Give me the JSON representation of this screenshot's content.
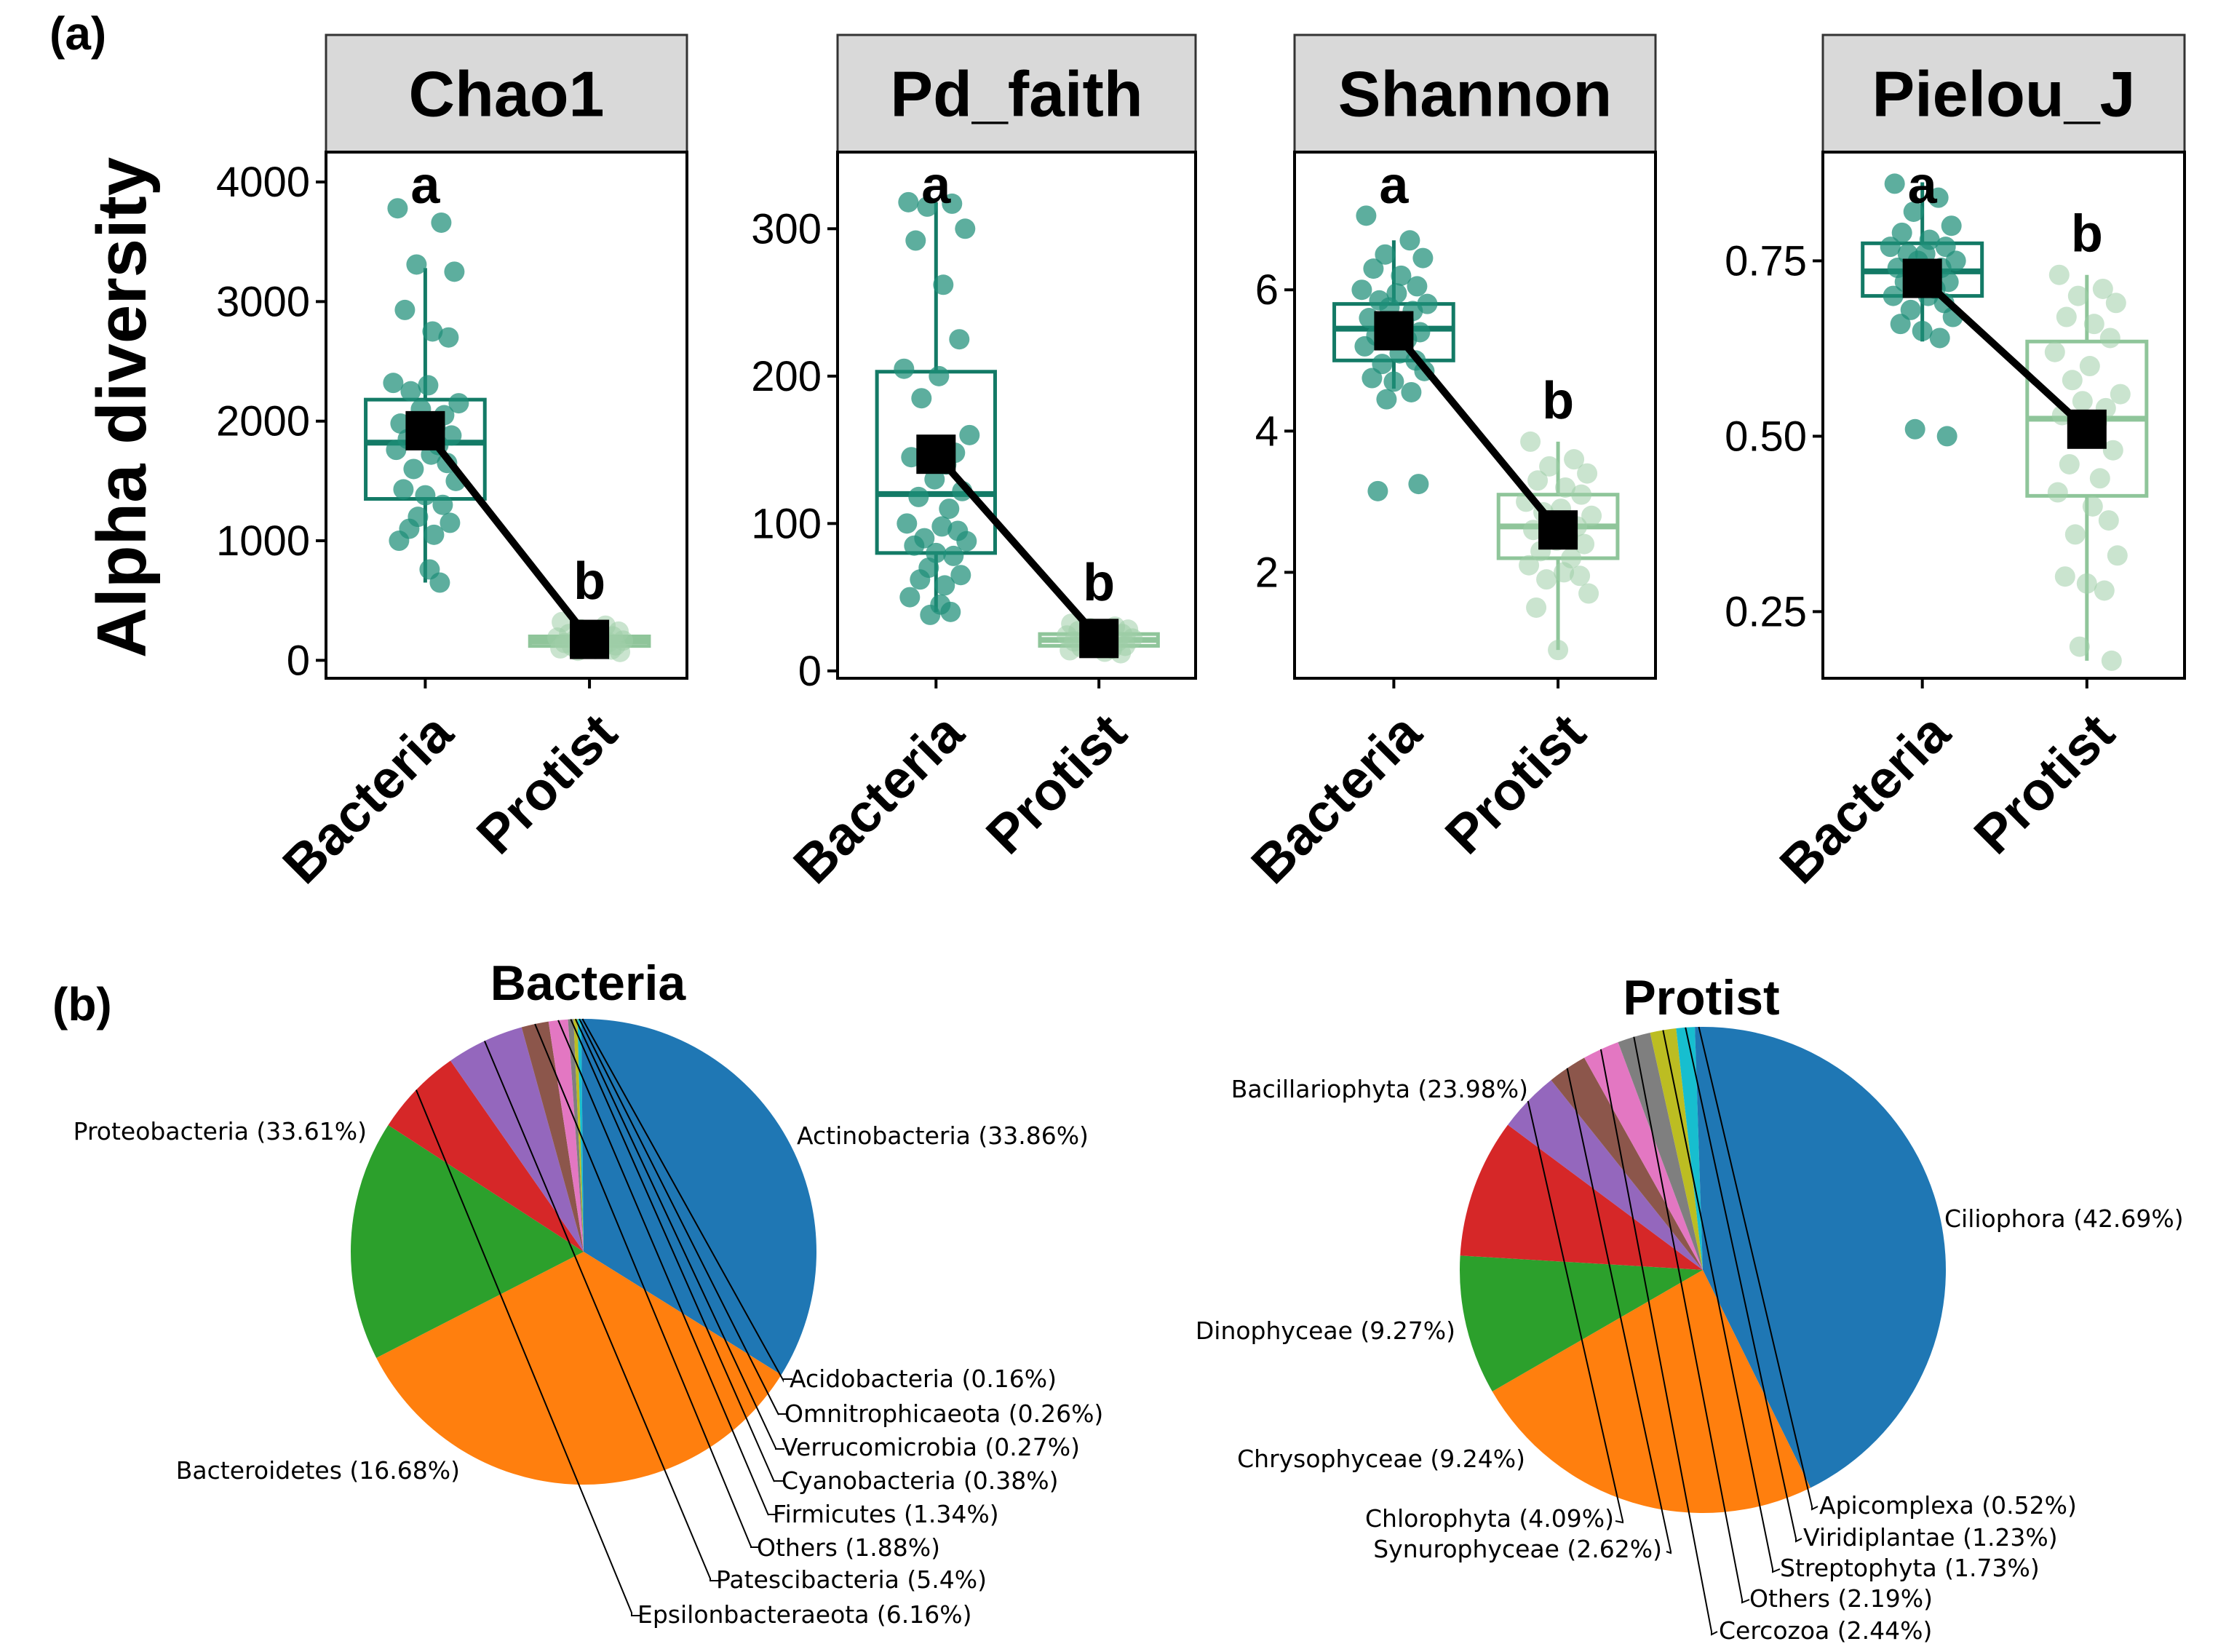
{
  "figure": {
    "label_a": "(a)",
    "label_b": "(b)",
    "y_axis_label": "Alpha diversity"
  },
  "colors": {
    "bacteria": "#137a66",
    "bacteria_point": "#1f8f78",
    "protist": "#8fc59a",
    "protist_point": "#9fcea8",
    "strip": "#d9d9d9",
    "mean_marker": "#000000",
    "pie": [
      "#1f77b4",
      "#ff7f0e",
      "#2ca02c",
      "#d62728",
      "#9467bd",
      "#8c564b",
      "#e377c2",
      "#7f7f7f",
      "#bcbd22",
      "#17becf"
    ]
  },
  "chart_data": [
    {
      "type": "box",
      "title": "Chao1",
      "categories": [
        "Bacteria",
        "Protist"
      ],
      "ylabel": "Alpha diversity",
      "ylim": [
        -150,
        4250
      ],
      "yticks": [
        0,
        1000,
        2000,
        3000,
        4000
      ],
      "tick_labels": [
        "0",
        "1000",
        "2000",
        "3000",
        "4000"
      ],
      "boxes": [
        {
          "group": "Bacteria",
          "min": 650,
          "q1": 1350,
          "median": 1820,
          "q3": 2180,
          "max": 3280,
          "mean": 1920
        },
        {
          "group": "Protist",
          "min": 70,
          "q1": 120,
          "median": 160,
          "q3": 200,
          "max": 320,
          "mean": 175
        }
      ],
      "points": {
        "Bacteria": [
          3780,
          3660,
          3310,
          3250,
          2930,
          2750,
          2700,
          2320,
          2300,
          2250,
          2150,
          2100,
          2050,
          1980,
          1950,
          1900,
          1880,
          1850,
          1800,
          1760,
          1720,
          1650,
          1600,
          1500,
          1430,
          1380,
          1300,
          1200,
          1150,
          1100,
          1050,
          1000,
          760,
          650
        ],
        "Protist": [
          320,
          290,
          260,
          240,
          220,
          210,
          200,
          190,
          180,
          170,
          165,
          160,
          150,
          145,
          140,
          130,
          125,
          120,
          110,
          100,
          95,
          90,
          80,
          70
        ]
      },
      "significance": [
        "a",
        "b"
      ]
    },
    {
      "type": "box",
      "title": "Pd_faith",
      "categories": [
        "Bacteria",
        "Protist"
      ],
      "ylabel": "Alpha diversity",
      "ylim": [
        -5,
        352
      ],
      "yticks": [
        0,
        100,
        200,
        300
      ],
      "tick_labels": [
        "0",
        "100",
        "200",
        "300"
      ],
      "boxes": [
        {
          "group": "Bacteria",
          "min": 40,
          "q1": 80,
          "median": 120,
          "q3": 203,
          "max": 318,
          "mean": 147
        },
        {
          "group": "Protist",
          "min": 12,
          "q1": 17,
          "median": 21,
          "q3": 25,
          "max": 32,
          "mean": 22
        }
      ],
      "points": {
        "Bacteria": [
          318,
          317,
          315,
          300,
          292,
          262,
          225,
          205,
          200,
          185,
          160,
          152,
          148,
          145,
          140,
          130,
          122,
          118,
          110,
          100,
          98,
          95,
          90,
          88,
          85,
          80,
          78,
          70,
          65,
          62,
          58,
          50,
          45,
          40,
          38
        ],
        "Protist": [
          32,
          30,
          29,
          28,
          27,
          26,
          25,
          24,
          23,
          22,
          22,
          21,
          20,
          20,
          19,
          18,
          17,
          16,
          15,
          14,
          13,
          12
        ]
      },
      "significance": [
        "a",
        "b"
      ]
    },
    {
      "type": "box",
      "title": "Shannon",
      "categories": [
        "Bacteria",
        "Protist"
      ],
      "ylabel": "Alpha diversity",
      "ylim": [
        0.5,
        7.95
      ],
      "yticks": [
        2,
        4,
        6
      ],
      "tick_labels": [
        "2",
        "4",
        "6"
      ],
      "boxes": [
        {
          "group": "Bacteria",
          "min": 4.6,
          "q1": 5.0,
          "median": 5.45,
          "q3": 5.8,
          "max": 6.7,
          "mean": 5.42
        },
        {
          "group": "Protist",
          "min": 0.9,
          "q1": 2.2,
          "median": 2.65,
          "q3": 3.1,
          "max": 3.85,
          "mean": 2.6
        }
      ],
      "points": {
        "Bacteria": [
          7.05,
          6.7,
          6.5,
          6.45,
          6.3,
          6.2,
          6.05,
          6.0,
          5.95,
          5.85,
          5.8,
          5.75,
          5.7,
          5.6,
          5.55,
          5.5,
          5.4,
          5.35,
          5.3,
          5.2,
          5.1,
          5.0,
          4.95,
          4.85,
          4.75,
          4.7,
          4.55,
          4.45,
          3.25,
          3.15
        ],
        "Protist": [
          3.85,
          3.6,
          3.5,
          3.4,
          3.3,
          3.2,
          3.1,
          3.0,
          2.9,
          2.85,
          2.8,
          2.7,
          2.65,
          2.6,
          2.5,
          2.45,
          2.4,
          2.3,
          2.2,
          2.1,
          2.0,
          1.95,
          1.9,
          1.7,
          1.5,
          0.9
        ]
      },
      "significance": [
        "a",
        "b"
      ]
    },
    {
      "type": "box",
      "title": "Pielou_J",
      "categories": [
        "Bacteria",
        "Protist"
      ],
      "ylabel": "Alpha diversity",
      "ylim": [
        0.155,
        0.905
      ],
      "yticks": [
        0.25,
        0.5,
        0.75
      ],
      "tick_labels": [
        "0.25",
        "0.50",
        "0.75"
      ],
      "boxes": [
        {
          "group": "Bacteria",
          "min": 0.635,
          "q1": 0.7,
          "median": 0.735,
          "q3": 0.775,
          "max": 0.862,
          "mean": 0.725
        },
        {
          "group": "Protist",
          "min": 0.18,
          "q1": 0.415,
          "median": 0.525,
          "q3": 0.635,
          "max": 0.73,
          "mean": 0.51
        }
      ],
      "points": {
        "Bacteria": [
          0.86,
          0.84,
          0.82,
          0.8,
          0.79,
          0.78,
          0.77,
          0.77,
          0.76,
          0.76,
          0.75,
          0.75,
          0.74,
          0.74,
          0.73,
          0.73,
          0.72,
          0.72,
          0.71,
          0.7,
          0.7,
          0.69,
          0.68,
          0.67,
          0.66,
          0.65,
          0.64,
          0.51,
          0.5
        ],
        "Protist": [
          0.73,
          0.71,
          0.7,
          0.69,
          0.67,
          0.66,
          0.64,
          0.62,
          0.6,
          0.58,
          0.56,
          0.55,
          0.54,
          0.53,
          0.52,
          0.5,
          0.48,
          0.46,
          0.44,
          0.42,
          0.4,
          0.38,
          0.36,
          0.33,
          0.3,
          0.29,
          0.28,
          0.2,
          0.18
        ]
      },
      "significance": [
        "a",
        "b"
      ]
    },
    {
      "type": "pie",
      "title": "Bacteria",
      "labels": [
        "Actinobacteria",
        "Proteobacteria",
        "Bacteroidetes",
        "Epsilonbacteraeota",
        "Patescibacteria",
        "Others",
        "Firmicutes",
        "Cyanobacteria",
        "Verrucomicrobia",
        "Omnitrophicaeota",
        "Acidobacteria"
      ],
      "values": [
        33.86,
        33.61,
        16.68,
        6.16,
        5.4,
        1.88,
        1.34,
        0.38,
        0.27,
        0.26,
        0.16
      ],
      "display_labels": [
        "Actinobacteria (33.86%)",
        "Proteobacteria (33.61%)",
        "Bacteroidetes (16.68%)",
        "Epsilonbacteraeota (6.16%)",
        "Patescibacteria (5.4%)",
        "Others (1.88%)",
        "Firmicutes (1.34%)",
        "Cyanobacteria (0.38%)",
        "Verrucomicrobia (0.27%)",
        "Omnitrophicaeota (0.26%)",
        "Acidobacteria (0.16%)"
      ],
      "colors": [
        "#1f77b4",
        "#ff7f0e",
        "#2ca02c",
        "#d62728",
        "#9467bd",
        "#8c564b",
        "#e377c2",
        "#7f7f7f",
        "#bcbd22",
        "#17becf",
        "#1f77b4"
      ]
    },
    {
      "type": "pie",
      "title": "Protist",
      "labels": [
        "Ciliophora",
        "Bacillariophyta",
        "Dinophyceae",
        "Chrysophyceae",
        "Chlorophyta",
        "Synurophyceae",
        "Cercozoa",
        "Others",
        "Streptophyta",
        "Viridiplantae",
        "Apicomplexa"
      ],
      "values": [
        42.69,
        23.98,
        9.27,
        9.24,
        4.09,
        2.62,
        2.44,
        2.19,
        1.73,
        1.23,
        0.52
      ],
      "display_labels": [
        "Ciliophora (42.69%)",
        "Bacillariophyta (23.98%)",
        "Dinophyceae (9.27%)",
        "Chrysophyceae (9.24%)",
        "Chlorophyta (4.09%)",
        "Synurophyceae (2.62%)",
        "Cercozoa (2.44%)",
        "Others (2.19%)",
        "Streptophyta (1.73%)",
        "Viridiplantae (1.23%)",
        "Apicomplexa (0.52%)"
      ],
      "colors": [
        "#1f77b4",
        "#ff7f0e",
        "#2ca02c",
        "#d62728",
        "#9467bd",
        "#8c564b",
        "#e377c2",
        "#7f7f7f",
        "#bcbd22",
        "#17becf",
        "#1f77b4"
      ]
    }
  ]
}
